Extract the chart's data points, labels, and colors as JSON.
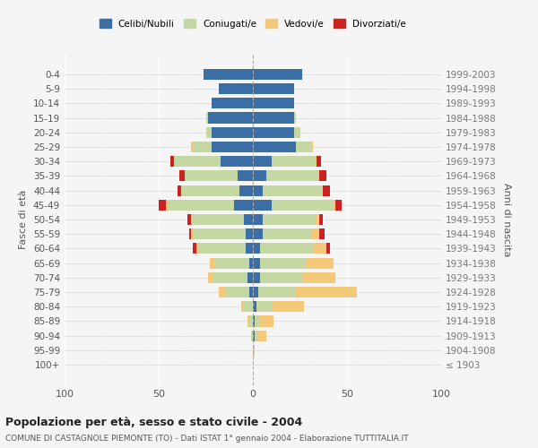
{
  "age_groups": [
    "100+",
    "95-99",
    "90-94",
    "85-89",
    "80-84",
    "75-79",
    "70-74",
    "65-69",
    "60-64",
    "55-59",
    "50-54",
    "45-49",
    "40-44",
    "35-39",
    "30-34",
    "25-29",
    "20-24",
    "15-19",
    "10-14",
    "5-9",
    "0-4"
  ],
  "birth_years": [
    "≤ 1903",
    "1904-1908",
    "1909-1913",
    "1914-1918",
    "1919-1923",
    "1924-1928",
    "1929-1933",
    "1934-1938",
    "1939-1943",
    "1944-1948",
    "1949-1953",
    "1954-1958",
    "1959-1963",
    "1964-1968",
    "1969-1973",
    "1974-1978",
    "1979-1983",
    "1984-1988",
    "1989-1993",
    "1994-1998",
    "1999-2003"
  ],
  "colors": {
    "celibi": "#3a6ea5",
    "coniugati": "#c5d8a4",
    "vedovi": "#f5c97a",
    "divorziati": "#cc2222"
  },
  "males": {
    "celibi": [
      0,
      0,
      0,
      0,
      0,
      2,
      3,
      2,
      4,
      4,
      5,
      10,
      7,
      8,
      17,
      22,
      22,
      24,
      22,
      18,
      26
    ],
    "coniugati": [
      0,
      0,
      1,
      2,
      5,
      13,
      18,
      18,
      25,
      28,
      28,
      35,
      31,
      28,
      25,
      10,
      3,
      1,
      0,
      0,
      0
    ],
    "vedovi": [
      0,
      0,
      0,
      1,
      1,
      3,
      3,
      3,
      1,
      1,
      0,
      1,
      0,
      0,
      0,
      1,
      0,
      0,
      0,
      0,
      0
    ],
    "divorziati": [
      0,
      0,
      0,
      0,
      0,
      0,
      0,
      0,
      2,
      1,
      2,
      4,
      2,
      3,
      2,
      0,
      0,
      0,
      0,
      0,
      0
    ]
  },
  "females": {
    "celibi": [
      0,
      0,
      1,
      1,
      2,
      3,
      4,
      4,
      4,
      5,
      5,
      10,
      5,
      7,
      10,
      23,
      22,
      22,
      22,
      22,
      26
    ],
    "coniugati": [
      0,
      0,
      2,
      3,
      8,
      20,
      22,
      24,
      28,
      26,
      28,
      33,
      32,
      28,
      23,
      8,
      3,
      1,
      0,
      0,
      0
    ],
    "vedovi": [
      0,
      1,
      4,
      7,
      17,
      32,
      18,
      15,
      7,
      4,
      2,
      1,
      0,
      0,
      1,
      1,
      0,
      0,
      0,
      0,
      0
    ],
    "divorziati": [
      0,
      0,
      0,
      0,
      0,
      0,
      0,
      0,
      2,
      3,
      2,
      3,
      4,
      4,
      2,
      0,
      0,
      0,
      0,
      0,
      0
    ]
  },
  "title": "Popolazione per età, sesso e stato civile - 2004",
  "subtitle": "COMUNE DI CASTAGNOLE PIEMONTE (TO) - Dati ISTAT 1° gennaio 2004 - Elaborazione TUTTITALIA.IT",
  "ylabel_left": "Fasce di età",
  "ylabel_right": "Anni di nascita",
  "xlim": 100,
  "legend_labels": [
    "Celibi/Nubili",
    "Coniugati/e",
    "Vedovi/e",
    "Divorziati/e"
  ],
  "bg_color": "#f5f5f5",
  "bar_height": 0.75
}
